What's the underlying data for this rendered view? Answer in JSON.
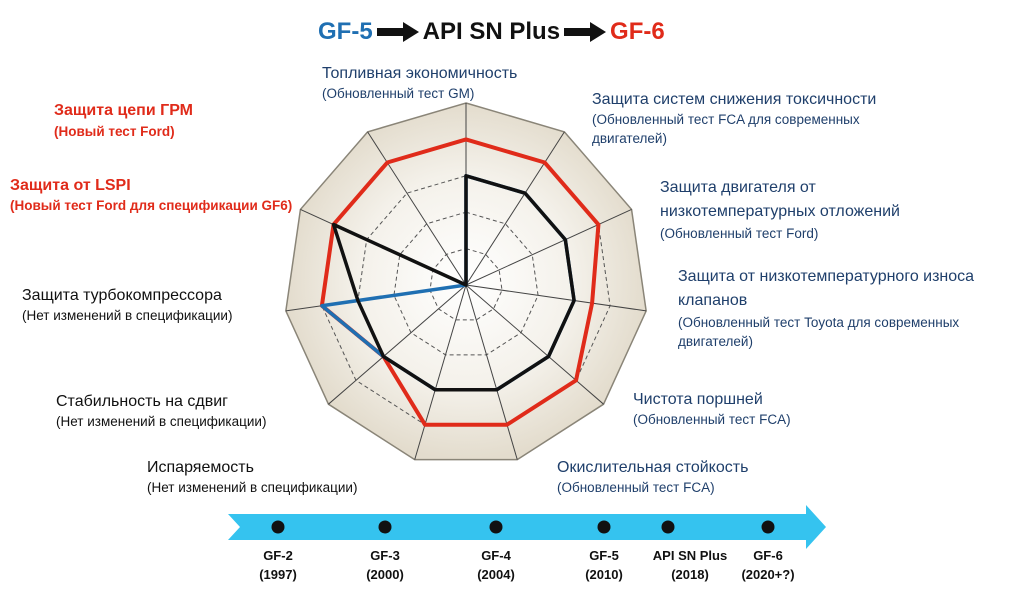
{
  "title": {
    "gf5": "GF-5",
    "api": "API SN Plus",
    "gf6": "GF-6",
    "colors": {
      "gf5": "#1f6fb2",
      "gf6": "#e02b1a",
      "api": "#111111"
    }
  },
  "axes": [
    {
      "label": "Топливная экономичность",
      "note": "(Обновленный тест GM)",
      "color": "blue"
    },
    {
      "label": "Защита систем снижения токсичности",
      "note": "(Обновленный тест FCA для современных двигателей)",
      "color": "blue"
    },
    {
      "label": "Защита двигателя от низкотемпературных отложений",
      "note": "(Обновленный тест Ford)",
      "color": "blue"
    },
    {
      "label": "Защита от низкотемпературного износа клапанов",
      "note": "(Обновленный тест Toyota для современных двигателей)",
      "color": "blue"
    },
    {
      "label": "Чистота поршней",
      "note": "(Обновленный тест FCA)",
      "color": "blue"
    },
    {
      "label": "Окислительная стойкость",
      "note": "(Обновленный тест FCA)",
      "color": "blue"
    },
    {
      "label": "Испаряемость",
      "note": "(Нет изменений в спецификации)",
      "color": "black"
    },
    {
      "label": "Стабильность на сдвиг",
      "note": "(Нет изменений в спецификации)",
      "color": "black"
    },
    {
      "label": "Защита турбокомпрессора",
      "note": "(Нет изменений в спецификации)",
      "color": "black"
    },
    {
      "label": "Защита от LSPI",
      "note": "(Новый тест Ford для спецификации GF6)",
      "color": "red"
    },
    {
      "label": "Защита цепи ГРМ",
      "note": "(Новый тест Ford)",
      "color": "red"
    }
  ],
  "series": [
    {
      "key": "gf6",
      "color": "#e02b1a",
      "values": [
        0.8,
        0.8,
        0.8,
        0.7,
        0.8,
        0.8,
        0.8,
        0.6,
        0.8,
        0.8,
        0.8
      ]
    },
    {
      "key": "gf5",
      "color": "#1f6fb2",
      "values": [
        0.6,
        0.6,
        0.6,
        0.6,
        0.6,
        0.6,
        0.6,
        0.6,
        0.8,
        0,
        0
      ]
    },
    {
      "key": "api",
      "color": "#111111",
      "values": [
        0.6,
        0.6,
        0.6,
        0.6,
        0.6,
        0.6,
        0.6,
        0.6,
        0.6,
        0.8,
        0
      ]
    }
  ],
  "timeline": [
    {
      "name": "GF-2",
      "year": "(1997)"
    },
    {
      "name": "GF-3",
      "year": "(2000)"
    },
    {
      "name": "GF-4",
      "year": "(2004)"
    },
    {
      "name": "GF-5",
      "year": "(2010)"
    },
    {
      "name": "API SN Plus",
      "year": "(2018)"
    },
    {
      "name": "GF-6",
      "year": "(2020+?)"
    }
  ]
}
